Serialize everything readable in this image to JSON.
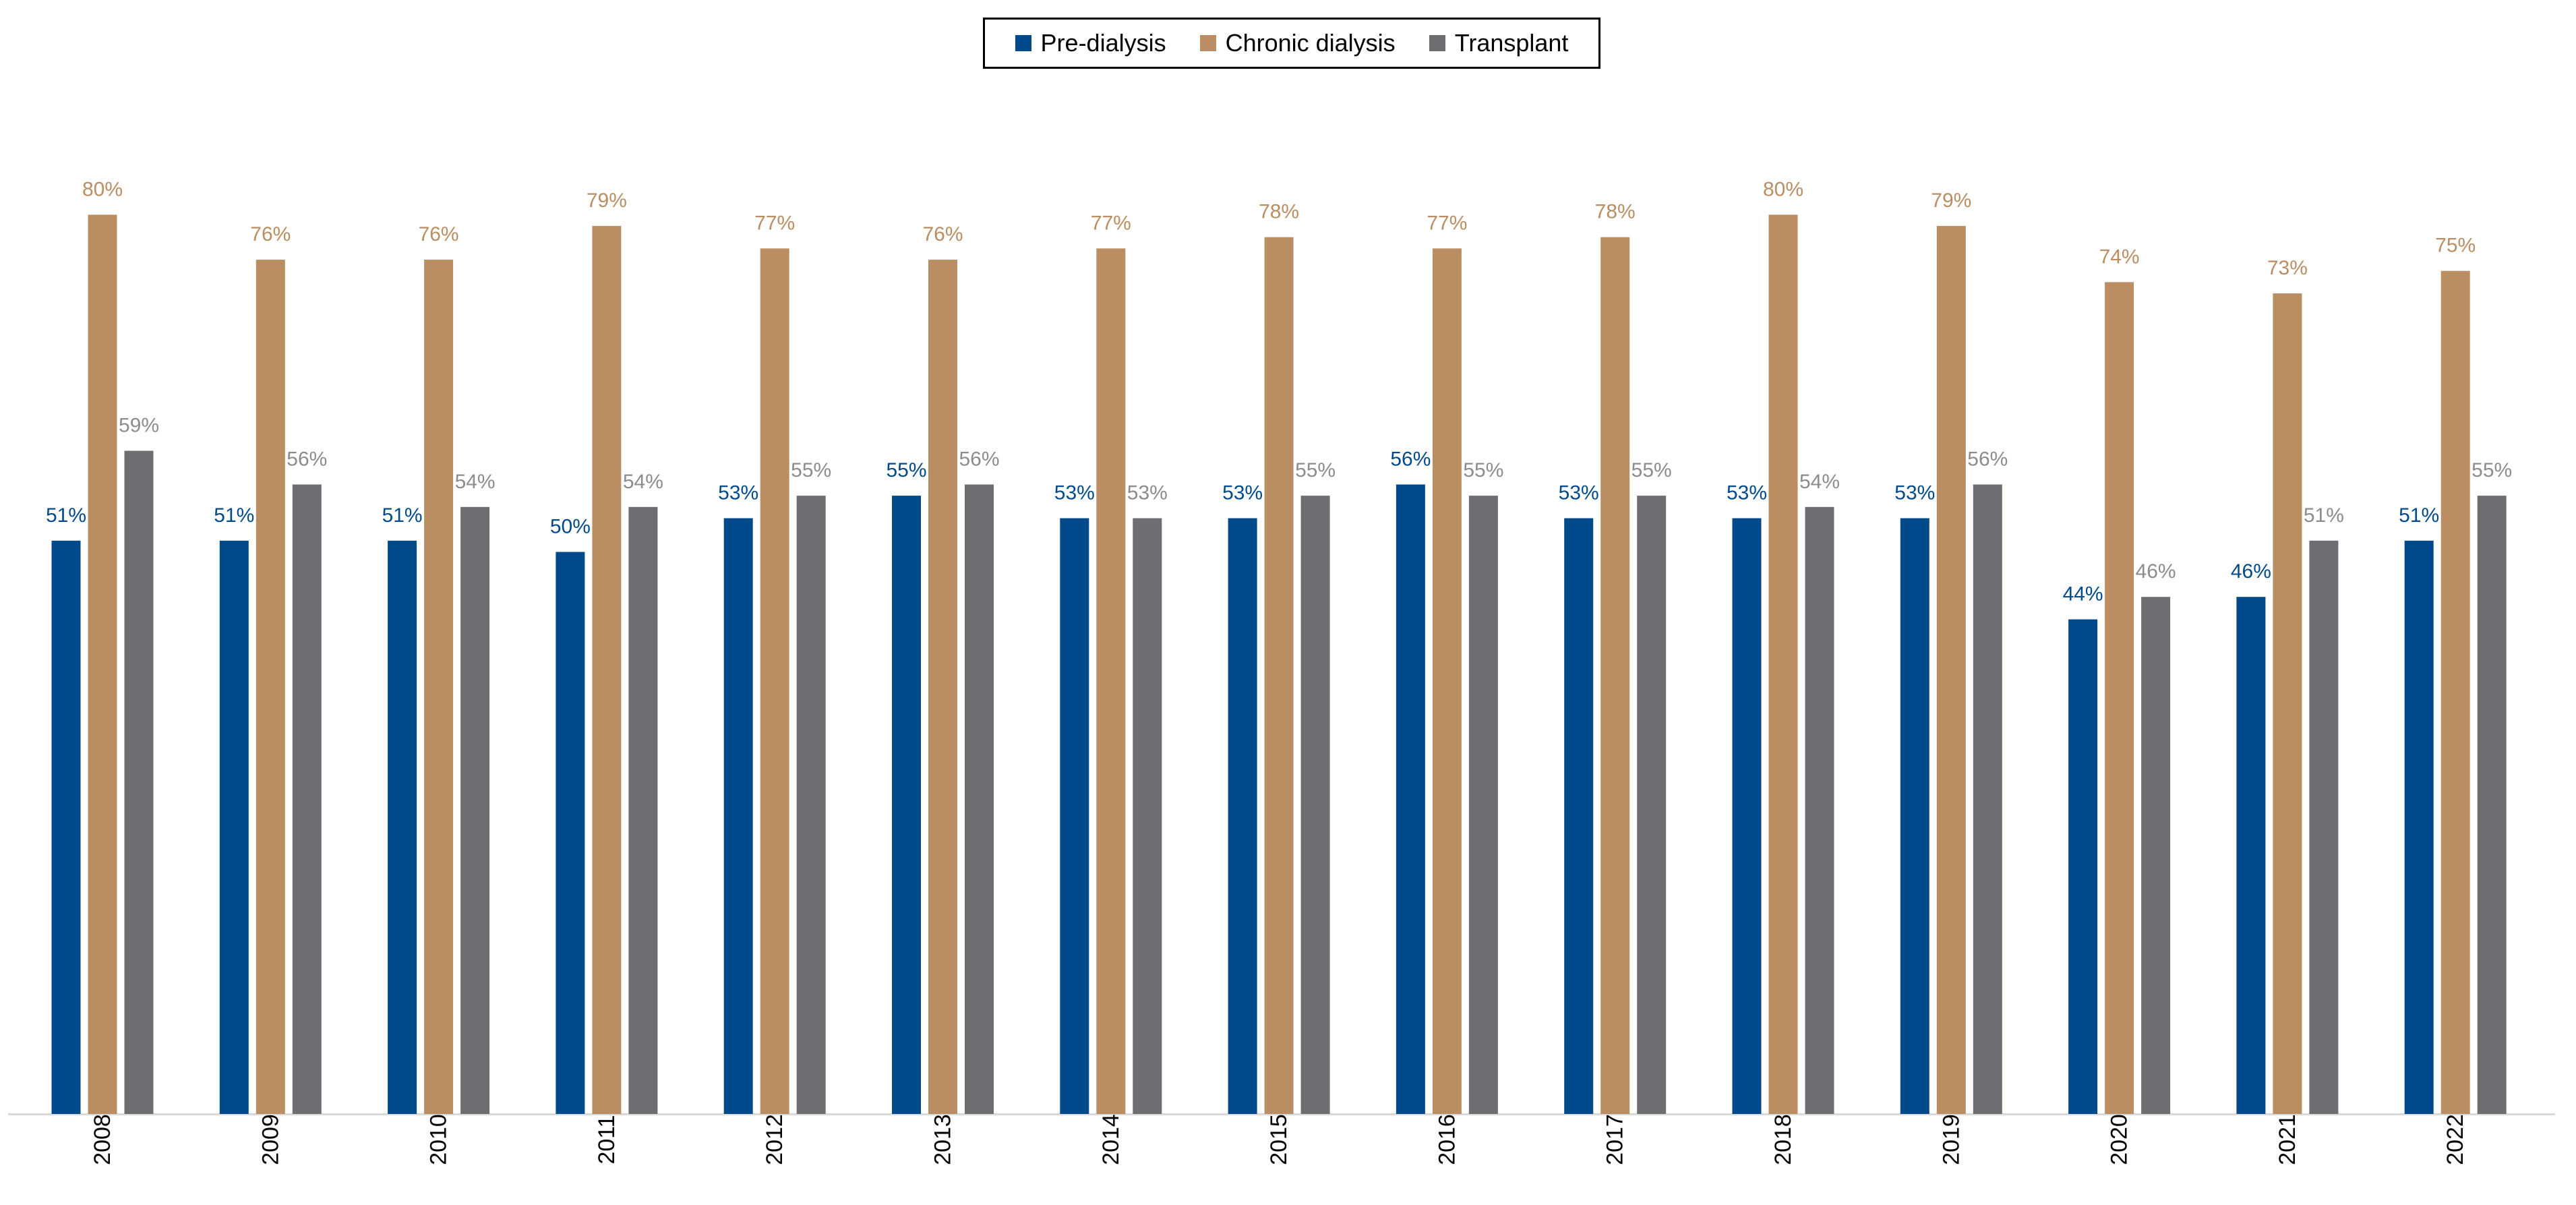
{
  "chart_data": {
    "type": "bar",
    "title": "",
    "xlabel": "",
    "ylabel": "",
    "ylim": [
      0,
      85
    ],
    "grid": false,
    "legend_position": "top-center",
    "categories": [
      "2008",
      "2009",
      "2010",
      "2011",
      "2012",
      "2013",
      "2014",
      "2015",
      "2016",
      "2017",
      "2018",
      "2019",
      "2020",
      "2021",
      "2022"
    ],
    "series": [
      {
        "name": "Pre-dialysis",
        "color": "#004A8C",
        "values": [
          51,
          51,
          51,
          50,
          53,
          55,
          53,
          53,
          56,
          53,
          53,
          53,
          44,
          46,
          51
        ],
        "labels": [
          "51%",
          "51%",
          "51%",
          "50%",
          "53%",
          "55%",
          "53%",
          "53%",
          "56%",
          "53%",
          "53%",
          "53%",
          "44%",
          "46%",
          "51%"
        ]
      },
      {
        "name": "Chronic dialysis",
        "color": "#BA8E62",
        "values": [
          80,
          76,
          76,
          79,
          77,
          76,
          77,
          78,
          77,
          78,
          80,
          79,
          74,
          73,
          75
        ],
        "labels": [
          "80%",
          "76%",
          "76%",
          "79%",
          "77%",
          "76%",
          "77%",
          "78%",
          "77%",
          "78%",
          "80%",
          "79%",
          "74%",
          "73%",
          "75%"
        ]
      },
      {
        "name": "Transplant",
        "color": "#6D6E71",
        "label_color": "#8C8C8C",
        "values": [
          59,
          56,
          54,
          54,
          55,
          56,
          53,
          55,
          55,
          55,
          54,
          56,
          46,
          51,
          55
        ],
        "labels": [
          "59%",
          "56%",
          "54%",
          "54%",
          "55%",
          "56%",
          "53%",
          "55%",
          "55%",
          "55%",
          "54%",
          "56%",
          "46%",
          "51%",
          "55%"
        ]
      }
    ]
  }
}
